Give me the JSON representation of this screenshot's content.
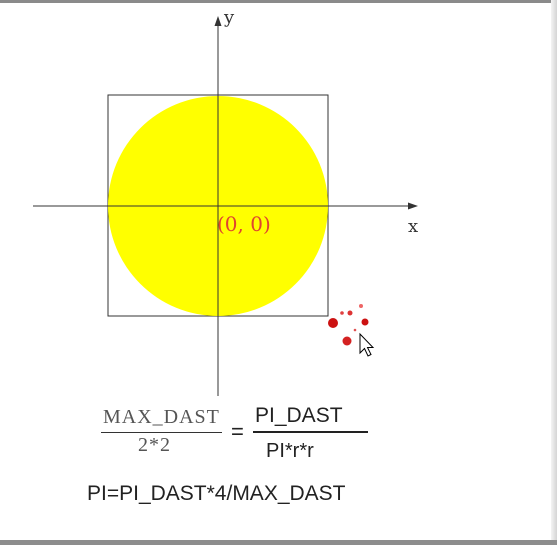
{
  "diagram": {
    "axis_x_label": "x",
    "axis_y_label": "y",
    "origin_label": "(0, 0)",
    "circle_color": "#ffff00",
    "origin_label_color": "#e0442e",
    "square_stroke_color": "#333333",
    "axis_color": "#333333",
    "loading_dots_color": "#cc1111",
    "cursor_icon": "arrow-cursor-icon"
  },
  "equation": {
    "left_numerator": "MAX_DAST",
    "left_denominator": "2*2",
    "equals": "=",
    "right_numerator": "PI_DAST",
    "right_denominator": "PI*r*r"
  },
  "formula": {
    "text": "PI=PI_DAST*4/MAX_DAST"
  }
}
